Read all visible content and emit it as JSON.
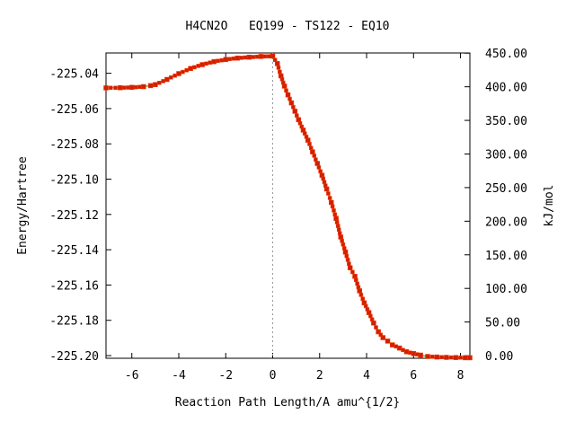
{
  "chart_data": {
    "type": "line",
    "title": "H4CN2O   EQ199 - TS122 - EQ10",
    "xlabel": "Reaction Path Length/A amu^{1/2}",
    "ylabel": "Energy/Hartree",
    "y2label": "kJ/mol",
    "xlim": [
      -7.1,
      8.4
    ],
    "ylim": [
      -225.2015,
      -225.0285
    ],
    "y2lim": [
      -3.94,
      450.3
    ],
    "x_ticks": [
      "-6",
      "-4",
      "-2",
      "0",
      "2",
      "4",
      "6",
      "8"
    ],
    "x_tick_values": [
      -6,
      -4,
      -2,
      0,
      2,
      4,
      6,
      8
    ],
    "y_ticks": [
      "-225.04",
      "-225.06",
      "-225.08",
      "-225.10",
      "-225.12",
      "-225.14",
      "-225.16",
      "-225.18",
      "-225.20"
    ],
    "y_tick_values": [
      -225.04,
      -225.06,
      -225.08,
      -225.1,
      -225.12,
      -225.14,
      -225.16,
      -225.18,
      -225.2
    ],
    "y2_ticks": [
      "450.00",
      "400.00",
      "350.00",
      "300.00",
      "250.00",
      "200.00",
      "150.00",
      "100.00",
      "50.00",
      "0.00"
    ],
    "y2_tick_values": [
      450,
      400,
      350,
      300,
      250,
      200,
      150,
      100,
      50,
      0
    ],
    "ts_x": 0,
    "series": [
      {
        "x": [
          -7.1,
          -6.5,
          -6.0,
          -5.5,
          -5.2,
          -5.0,
          -4.5,
          -4.0,
          -3.5,
          -3.0,
          -2.5,
          -2.0,
          -1.5,
          -1.0,
          -0.5,
          0.0,
          0.2,
          0.35,
          0.5,
          0.65,
          0.8,
          0.95,
          1.1,
          1.3,
          1.5,
          1.7,
          1.9,
          2.1,
          2.3,
          2.5,
          2.7,
          2.9,
          3.1,
          3.3,
          3.5,
          3.7,
          3.9,
          4.1,
          4.3,
          4.5,
          4.7,
          4.9,
          5.1,
          5.4,
          5.7,
          6.0,
          6.3,
          6.6,
          7.0,
          7.4,
          7.8,
          8.2,
          8.4
        ],
        "y": [
          -225.0483,
          -225.0482,
          -225.048,
          -225.0476,
          -225.047,
          -225.0464,
          -225.0435,
          -225.0402,
          -225.0373,
          -225.0351,
          -225.0334,
          -225.0322,
          -225.0314,
          -225.0309,
          -225.0305,
          -225.0303,
          -225.0345,
          -225.0415,
          -225.0473,
          -225.0522,
          -225.0568,
          -225.0615,
          -225.0663,
          -225.0722,
          -225.0779,
          -225.0845,
          -225.0911,
          -225.0978,
          -225.1056,
          -225.1132,
          -225.1223,
          -225.1328,
          -225.1413,
          -225.1502,
          -225.1551,
          -225.1633,
          -225.1701,
          -225.1756,
          -225.1815,
          -225.1865,
          -225.1898,
          -225.1918,
          -225.1939,
          -225.1957,
          -225.1978,
          -225.1988,
          -225.1997,
          -225.2005,
          -225.2008,
          -225.201,
          -225.2011,
          -225.2012,
          -225.2012
        ]
      }
    ]
  }
}
